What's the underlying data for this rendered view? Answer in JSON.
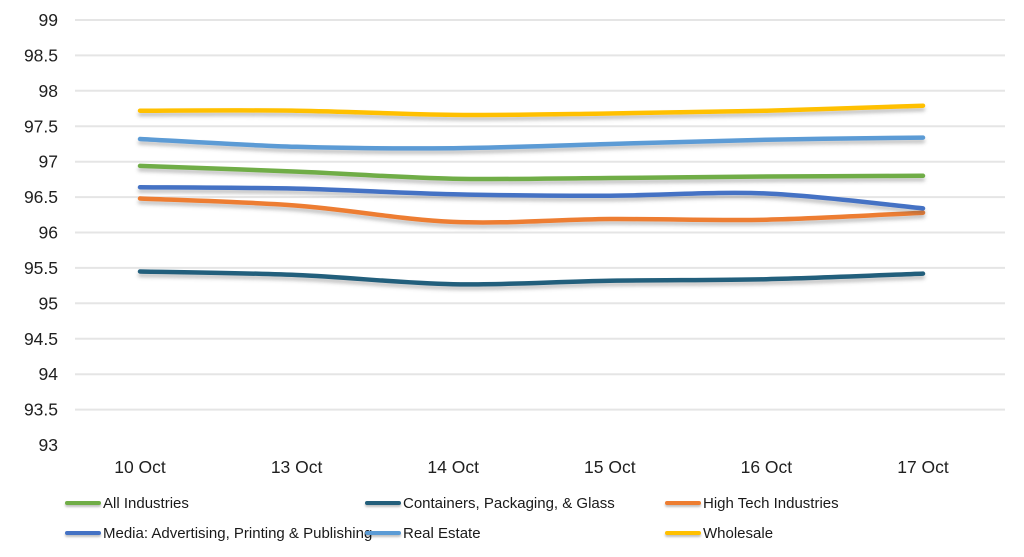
{
  "chart_data": {
    "type": "line",
    "title": "",
    "xlabel": "",
    "ylabel": "",
    "grid": true,
    "legend_position": "bottom",
    "x_categories": [
      "10 Oct",
      "13 Oct",
      "14 Oct",
      "15 Oct",
      "16 Oct",
      "17 Oct"
    ],
    "y_axis": {
      "min": 93,
      "max": 99,
      "step": 0.5,
      "tick_labels": [
        "99",
        "98.5",
        "98",
        "97.5",
        "97",
        "96.5",
        "96",
        "95.5",
        "95",
        "94.5",
        "94",
        "93.5",
        "93"
      ]
    },
    "series": [
      {
        "name": "All Industries",
        "color": "#70AD47",
        "values": [
          96.94,
          96.86,
          96.76,
          96.77,
          96.79,
          96.8
        ]
      },
      {
        "name": "Containers, Packaging, & Glass",
        "color": "#235F7B",
        "values": [
          95.45,
          95.4,
          95.27,
          95.32,
          95.34,
          95.42
        ]
      },
      {
        "name": "High Tech Industries",
        "color": "#ED7D31",
        "values": [
          96.48,
          96.38,
          96.15,
          96.19,
          96.18,
          96.28
        ]
      },
      {
        "name": "Media: Advertising, Printing & Publishing",
        "color": "#4472C4",
        "values": [
          96.64,
          96.62,
          96.54,
          96.52,
          96.55,
          96.34
        ]
      },
      {
        "name": "Real Estate",
        "color": "#5B9BD5",
        "values": [
          97.32,
          97.21,
          97.19,
          97.25,
          97.31,
          97.34
        ]
      },
      {
        "name": "Wholesale",
        "color": "#FFC000",
        "values": [
          97.72,
          97.72,
          97.66,
          97.68,
          97.72,
          97.79
        ]
      }
    ],
    "style": {
      "gridline_color": "#E5E5E5",
      "tick_label_color": "#1f1f1f",
      "background": "#ffffff"
    }
  }
}
